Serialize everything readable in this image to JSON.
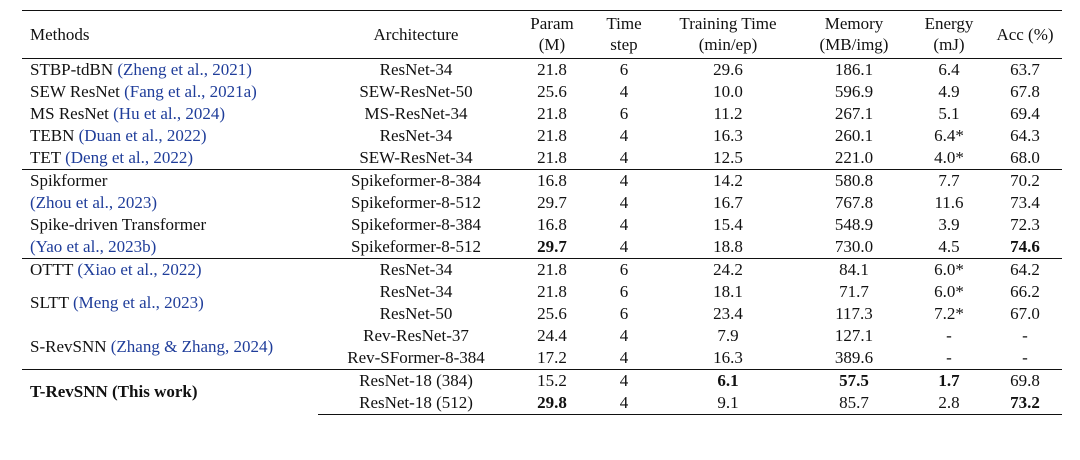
{
  "headers": {
    "methods": "Methods",
    "architecture": "Architecture",
    "param": [
      "Param",
      "(M)"
    ],
    "timestep": [
      "Time",
      "step"
    ],
    "training_time": [
      "Training Time",
      "(min/ep)"
    ],
    "memory": [
      "Memory",
      "(MB/img)"
    ],
    "energy": [
      "Energy",
      "(mJ)"
    ],
    "acc": "Acc (%)"
  },
  "rows": [
    {
      "m_text": "STBP-tdBN ",
      "m_cite": "(Zheng et al., 2021)",
      "arch": "ResNet-34",
      "param": "21.8",
      "ts": "6",
      "tt": "29.6",
      "mem": "186.1",
      "energy": "6.4",
      "acc": "63.7"
    },
    {
      "m_text": "SEW ResNet ",
      "m_cite": "(Fang et al., 2021a)",
      "arch": "SEW-ResNet-50",
      "param": "25.6",
      "ts": "4",
      "tt": "10.0",
      "mem": "596.9",
      "energy": "4.9",
      "acc": "67.8"
    },
    {
      "m_text": "MS ResNet ",
      "m_cite": "(Hu et al., 2024)",
      "arch": "MS-ResNet-34",
      "param": "21.8",
      "ts": "6",
      "tt": "11.2",
      "mem": "267.1",
      "energy": "5.1",
      "acc": "69.4"
    },
    {
      "m_text": "TEBN ",
      "m_cite": "(Duan et al., 2022)",
      "arch": "ResNet-34",
      "param": "21.8",
      "ts": "4",
      "tt": "16.3",
      "mem": "260.1",
      "energy": "6.4*",
      "acc": "64.3"
    },
    {
      "m_text": "TET ",
      "m_cite": "(Deng et al., 2022)",
      "arch": "SEW-ResNet-34",
      "param": "21.8",
      "ts": "4",
      "tt": "12.5",
      "mem": "221.0",
      "energy": "4.0*",
      "acc": "68.0"
    },
    {
      "m_text": "Spikformer",
      "m_cite": "",
      "arch": "Spikeformer-8-384",
      "param": "16.8",
      "ts": "4",
      "tt": "14.2",
      "mem": "580.8",
      "energy": "7.7",
      "acc": "70.2"
    },
    {
      "m_text": "",
      "m_cite": "(Zhou et al., 2023)",
      "arch": "Spikeformer-8-512",
      "param": "29.7",
      "ts": "4",
      "tt": "16.7",
      "mem": "767.8",
      "energy": "11.6",
      "acc": "73.4"
    },
    {
      "m_text": "Spike-driven Transformer",
      "m_cite": "",
      "arch": "Spikeformer-8-384",
      "param": "16.8",
      "ts": "4",
      "tt": "15.4",
      "mem": "548.9",
      "energy": "3.9",
      "acc": "72.3"
    },
    {
      "m_text": "",
      "m_cite": "(Yao et al., 2023b)",
      "arch": "Spikeformer-8-512",
      "param": "29.7",
      "ts": "4",
      "tt": "18.8",
      "mem": "730.0",
      "energy": "4.5",
      "acc": "74.6"
    },
    {
      "m_text": "OTTT ",
      "m_cite": "(Xiao et al., 2022)",
      "arch": "ResNet-34",
      "param": "21.8",
      "ts": "6",
      "tt": "24.2",
      "mem": "84.1",
      "energy": "6.0*",
      "acc": "64.2"
    },
    {
      "m_text": "SLTT ",
      "m_cite": "(Meng et al., 2023)",
      "arch": "ResNet-34",
      "param": "21.8",
      "ts": "6",
      "tt": "18.1",
      "mem": "71.7",
      "energy": "6.0*",
      "acc": "66.2"
    },
    {
      "arch": "ResNet-50",
      "param": "25.6",
      "ts": "6",
      "tt": "23.4",
      "mem": "117.3",
      "energy": "7.2*",
      "acc": "67.0"
    },
    {
      "m_text": "S-RevSNN ",
      "m_cite": "(Zhang & Zhang, 2024)",
      "arch": "Rev-ResNet-37",
      "param": "24.4",
      "ts": "4",
      "tt": "7.9",
      "mem": "127.1",
      "energy": "-",
      "acc": "-"
    },
    {
      "arch": "Rev-SFormer-8-384",
      "param": "17.2",
      "ts": "4",
      "tt": "16.3",
      "mem": "389.6",
      "energy": "-",
      "acc": "-"
    },
    {
      "m_text": "T-RevSNN (This work)",
      "arch": "ResNet-18 (384)",
      "param": "15.2",
      "ts": "4",
      "tt": "6.1",
      "mem": "57.5",
      "energy": "1.7",
      "acc": "69.8"
    },
    {
      "arch": "ResNet-18 (512)",
      "param": "29.8",
      "ts": "4",
      "tt": "9.1",
      "mem": "85.7",
      "energy": "2.8",
      "acc": "73.2"
    }
  ]
}
